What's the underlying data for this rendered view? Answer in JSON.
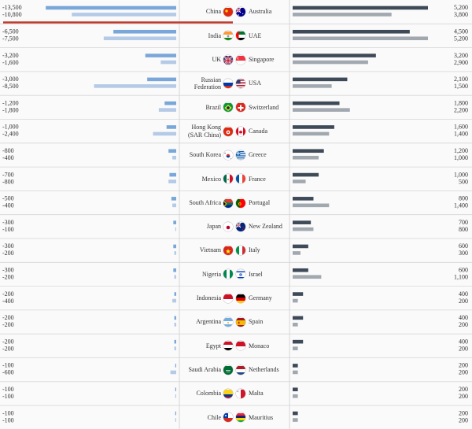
{
  "colors": {
    "left_primary": "#7aa7d9",
    "left_secondary": "#b4cae6",
    "right_primary": "#3e4a58",
    "right_secondary": "#a2a8b0",
    "highlight": "#c0392b",
    "grid": "#d6d6d6"
  },
  "chart_data": {
    "type": "bar",
    "left": {
      "countries": [
        "China",
        "India",
        "UK",
        "Russian Federation",
        "Brazil",
        "Hong Kong (SAR China)",
        "South Korea",
        "Mexico",
        "South Africa",
        "Japan",
        "Vietnam",
        "Nigeria",
        "Indonesia",
        "Argentina",
        "Egypt",
        "Saudi Arabia",
        "Colombia",
        "Chile"
      ],
      "series": [
        {
          "values": [
            -13500,
            -6500,
            -3200,
            -3000,
            -1200,
            -1000,
            -800,
            -700,
            -500,
            -300,
            -300,
            -300,
            -200,
            -200,
            -200,
            -100,
            -100,
            -100
          ]
        },
        {
          "values": [
            -10800,
            -7500,
            -1600,
            -8500,
            -1800,
            -2400,
            -400,
            -800,
            -400,
            -100,
            -200,
            -200,
            -400,
            -200,
            -200,
            -600,
            -100,
            -100
          ]
        }
      ],
      "xlim": [
        -14000,
        0
      ]
    },
    "right": {
      "countries": [
        "Australia",
        "UAE",
        "Singapore",
        "USA",
        "Switzerland",
        "Canada",
        "Greece",
        "France",
        "Portugal",
        "New Zealand",
        "Italy",
        "Israel",
        "Germany",
        "Spain",
        "Monaco",
        "Netherlands",
        "Malta",
        "Mauritius"
      ],
      "series": [
        {
          "values": [
            5200,
            4500,
            3200,
            2100,
            1800,
            1600,
            1200,
            1000,
            800,
            700,
            600,
            600,
            400,
            400,
            400,
            200,
            200,
            200
          ]
        },
        {
          "values": [
            3800,
            5200,
            2900,
            1500,
            2200,
            1400,
            1000,
            500,
            1400,
            800,
            300,
            1100,
            200,
            200,
            200,
            200,
            200,
            200
          ]
        }
      ],
      "xlim": [
        0,
        5200
      ]
    }
  },
  "left_names": [
    [
      "China"
    ],
    [
      "India"
    ],
    [
      "UK"
    ],
    [
      "Russian",
      "Federation"
    ],
    [
      "Brazil"
    ],
    [
      "Hong Kong",
      "(SAR China)"
    ],
    [
      "South Korea"
    ],
    [
      "Mexico"
    ],
    [
      "South Africa"
    ],
    [
      "Japan"
    ],
    [
      "Vietnam"
    ],
    [
      "Nigeria"
    ],
    [
      "Indonesia"
    ],
    [
      "Argentina"
    ],
    [
      "Egypt"
    ],
    [
      "Saudi Arabia"
    ],
    [
      "Colombia"
    ],
    [
      "Chile"
    ]
  ],
  "left_labels": [
    [
      "-13,500",
      "-10,800"
    ],
    [
      "-6,500",
      "-7,500"
    ],
    [
      "-3,200",
      "-1,600"
    ],
    [
      "-3,000",
      "-8,500"
    ],
    [
      "-1,200",
      "-1,800"
    ],
    [
      "-1,000",
      "-2,400"
    ],
    [
      "-800",
      "-400"
    ],
    [
      "-700",
      "-800"
    ],
    [
      "-500",
      "-400"
    ],
    [
      "-300",
      "-100"
    ],
    [
      "-300",
      "-200"
    ],
    [
      "-300",
      "-200"
    ],
    [
      "-200",
      "-400"
    ],
    [
      "-200",
      "-200"
    ],
    [
      "-200",
      "-200"
    ],
    [
      "-100",
      "-600"
    ],
    [
      "-100",
      "-100"
    ],
    [
      "-100",
      "-100"
    ]
  ],
  "right_labels": [
    [
      "5,200",
      "3,800"
    ],
    [
      "4,500",
      "5,200"
    ],
    [
      "3,200",
      "2,900"
    ],
    [
      "2,100",
      "1,500"
    ],
    [
      "1,800",
      "2,200"
    ],
    [
      "1,600",
      "1,400"
    ],
    [
      "1,200",
      "1,000"
    ],
    [
      "1,000",
      "500"
    ],
    [
      "800",
      "1,400"
    ],
    [
      "700",
      "800"
    ],
    [
      "600",
      "300"
    ],
    [
      "600",
      "1,100"
    ],
    [
      "400",
      "200"
    ],
    [
      "400",
      "200"
    ],
    [
      "400",
      "200"
    ],
    [
      "200",
      "200"
    ],
    [
      "200",
      "200"
    ],
    [
      "200",
      "200"
    ]
  ],
  "flags": {
    "left": [
      "china-flag-icon",
      "india-flag-icon",
      "uk-flag-icon",
      "russia-flag-icon",
      "brazil-flag-icon",
      "hong-kong-flag-icon",
      "south-korea-flag-icon",
      "mexico-flag-icon",
      "south-africa-flag-icon",
      "japan-flag-icon",
      "vietnam-flag-icon",
      "nigeria-flag-icon",
      "indonesia-flag-icon",
      "argentina-flag-icon",
      "egypt-flag-icon",
      "saudi-arabia-flag-icon",
      "colombia-flag-icon",
      "chile-flag-icon"
    ],
    "right": [
      "australia-flag-icon",
      "uae-flag-icon",
      "singapore-flag-icon",
      "usa-flag-icon",
      "switzerland-flag-icon",
      "canada-flag-icon",
      "greece-flag-icon",
      "france-flag-icon",
      "portugal-flag-icon",
      "new-zealand-flag-icon",
      "italy-flag-icon",
      "israel-flag-icon",
      "germany-flag-icon",
      "spain-flag-icon",
      "monaco-flag-icon",
      "netherlands-flag-icon",
      "malta-flag-icon",
      "mauritius-flag-icon"
    ]
  }
}
